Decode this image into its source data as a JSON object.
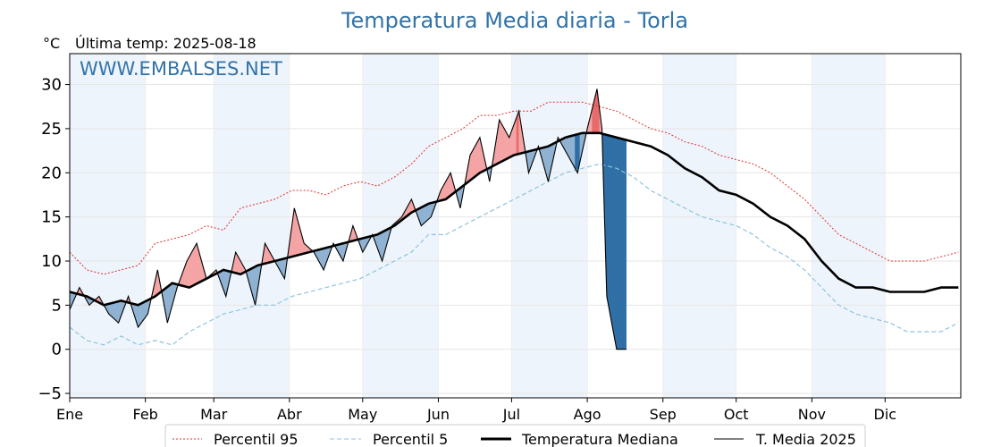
{
  "chart_data": {
    "type": "line",
    "title": "Temperatura Media diaria - Torla",
    "unit": "°C",
    "subtitle": "Última temp: 2025-08-18",
    "watermark": "WWW.EMBALSES.NET",
    "ylim": [
      -5.5,
      33.5
    ],
    "yticks": [
      -5,
      0,
      5,
      10,
      15,
      20,
      25,
      30
    ],
    "ytick_labels": [
      "−5",
      "0",
      "5",
      "10",
      "15",
      "20",
      "25",
      "30"
    ],
    "xlim": [
      1,
      366
    ],
    "month_ticks": [
      {
        "label": "Ene",
        "day": 1
      },
      {
        "label": "Feb",
        "day": 32
      },
      {
        "label": "Mar",
        "day": 60
      },
      {
        "label": "Abr",
        "day": 91
      },
      {
        "label": "May",
        "day": 121
      },
      {
        "label": "Jun",
        "day": 152
      },
      {
        "label": "Jul",
        "day": 182
      },
      {
        "label": "Ago",
        "day": 213
      },
      {
        "label": "Sep",
        "day": 244
      },
      {
        "label": "Oct",
        "day": 274
      },
      {
        "label": "Nov",
        "day": 305
      },
      {
        "label": "Dic",
        "day": 335
      }
    ],
    "shaded_months": [
      "Ene",
      "Mar",
      "May",
      "Jul",
      "Sep",
      "Nov"
    ],
    "grid": true,
    "legend_position": "bottom",
    "colors": {
      "p95": "#e03030",
      "p5": "#8fc3dd",
      "median": "#000000",
      "current": "#000000",
      "above_fill": "#f4a4a4",
      "above_fill_strong": "#e86a6a",
      "below_fill": "#8fb2d2",
      "below_fill_strong": "#2f6fa5",
      "month_shade": "#eef4fb",
      "title": "#3273a8"
    },
    "series": [
      {
        "name": "Percentil 95",
        "style": "dotted",
        "x": [
          1,
          8,
          15,
          22,
          29,
          36,
          43,
          50,
          57,
          64,
          71,
          78,
          85,
          92,
          99,
          106,
          113,
          120,
          127,
          134,
          141,
          148,
          155,
          162,
          169,
          176,
          183,
          190,
          197,
          204,
          211,
          218,
          225,
          232,
          239,
          246,
          253,
          260,
          267,
          274,
          281,
          288,
          295,
          302,
          309,
          316,
          323,
          330,
          337,
          344,
          351,
          358,
          365
        ],
        "values": [
          11,
          9,
          8.5,
          9,
          9.5,
          12,
          12.5,
          13,
          14,
          13.5,
          16,
          16.5,
          17,
          18,
          18,
          17.5,
          18.5,
          19,
          18.5,
          19.5,
          21,
          23,
          24,
          25,
          26.5,
          26.5,
          27,
          27,
          28,
          28,
          28,
          27.5,
          27,
          26,
          25,
          24.5,
          23.5,
          23,
          22,
          21.5,
          21,
          20,
          18.5,
          17,
          15,
          13,
          12,
          11,
          10,
          10,
          10,
          10.5,
          11
        ]
      },
      {
        "name": "Percentil 5",
        "style": "dashed",
        "x": [
          1,
          8,
          15,
          22,
          29,
          36,
          43,
          50,
          57,
          64,
          71,
          78,
          85,
          92,
          99,
          106,
          113,
          120,
          127,
          134,
          141,
          148,
          155,
          162,
          169,
          176,
          183,
          190,
          197,
          204,
          211,
          218,
          225,
          232,
          239,
          246,
          253,
          260,
          267,
          274,
          281,
          288,
          295,
          302,
          309,
          316,
          323,
          330,
          337,
          344,
          351,
          358,
          365
        ],
        "values": [
          2.5,
          1,
          0.5,
          1.5,
          0.5,
          1,
          0.5,
          2,
          3,
          4,
          4.5,
          5,
          5,
          6,
          6.5,
          7,
          7.5,
          8,
          9,
          10,
          11,
          13,
          13,
          14,
          15,
          16,
          17,
          18,
          19,
          20,
          20.5,
          21,
          20.5,
          19.5,
          18,
          17,
          16,
          15,
          14.5,
          14,
          13,
          11.5,
          10.5,
          9,
          7,
          5,
          4,
          3.5,
          3,
          2,
          2,
          2,
          3
        ]
      },
      {
        "name": "Temperatura Mediana",
        "style": "thick",
        "x": [
          1,
          8,
          15,
          22,
          29,
          36,
          43,
          50,
          57,
          64,
          71,
          78,
          85,
          92,
          99,
          106,
          113,
          120,
          127,
          134,
          141,
          148,
          155,
          162,
          169,
          176,
          183,
          190,
          197,
          204,
          211,
          218,
          225,
          232,
          239,
          246,
          253,
          260,
          267,
          274,
          281,
          288,
          295,
          302,
          309,
          316,
          323,
          330,
          337,
          344,
          351,
          358,
          365
        ],
        "values": [
          6.5,
          6,
          5,
          5.5,
          5,
          6,
          7.5,
          7,
          8,
          9,
          8.5,
          9.5,
          10,
          10.5,
          11,
          11.5,
          12,
          12.5,
          13,
          14,
          15.5,
          16.5,
          17,
          18.5,
          20,
          21,
          22,
          22.5,
          23,
          24,
          24.5,
          24.5,
          24,
          23.5,
          23,
          22,
          20.5,
          19.5,
          18,
          17.5,
          16.5,
          15,
          14,
          12.5,
          10,
          8,
          7,
          7,
          6.5,
          6.5,
          6.5,
          7,
          7
        ]
      },
      {
        "name": "T. Media 2025",
        "style": "thin",
        "x": [
          1,
          5,
          9,
          13,
          17,
          21,
          25,
          29,
          33,
          37,
          41,
          45,
          49,
          53,
          57,
          61,
          65,
          69,
          73,
          77,
          81,
          85,
          89,
          93,
          97,
          101,
          105,
          109,
          113,
          117,
          121,
          125,
          129,
          133,
          137,
          141,
          145,
          149,
          153,
          157,
          161,
          165,
          169,
          173,
          177,
          181,
          185,
          189,
          193,
          197,
          201,
          205,
          209,
          213,
          217,
          219,
          221,
          225,
          229
        ],
        "values": [
          4.5,
          7,
          5,
          6,
          4,
          3,
          6,
          2.5,
          4,
          9,
          3,
          7,
          10,
          12,
          8,
          9,
          6,
          11,
          9,
          5,
          12,
          10,
          8,
          16,
          12,
          11,
          9,
          12,
          10,
          14,
          11,
          13,
          10,
          14,
          15,
          17,
          14,
          15,
          18,
          20,
          16,
          22,
          24,
          19,
          26,
          24,
          27,
          20,
          23,
          19,
          24,
          22,
          20,
          25,
          29.5,
          25,
          6,
          0,
          0
        ]
      }
    ],
    "legend": [
      "Percentil 95",
      "Percentil 5",
      "Temperatura Mediana",
      "T. Media 2025"
    ]
  }
}
